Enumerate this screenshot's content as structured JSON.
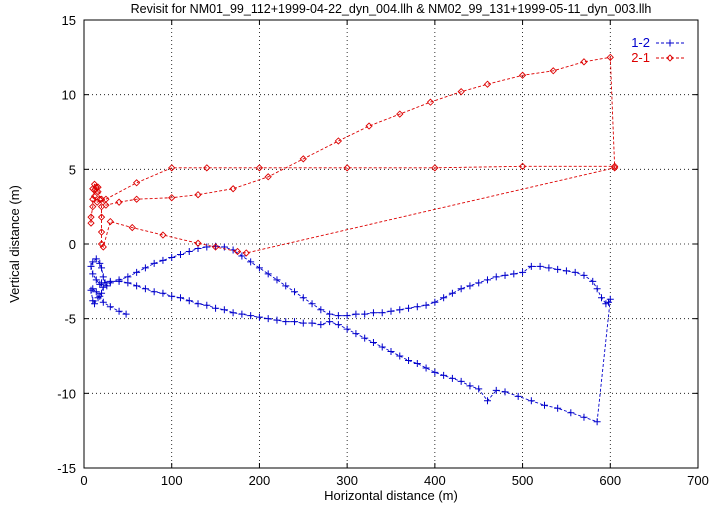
{
  "chart_data": {
    "type": "scatter",
    "title": "Revisit for NM01_99_112+1999-04-22_dyn_004.llh & NM02_99_131+1999-05-11_dyn_003.llh",
    "xlabel": "Horizontal distance (m)",
    "ylabel": "Vertical distance (m)",
    "xlim": [
      0,
      700
    ],
    "ylim": [
      -15,
      15
    ],
    "x_ticks": [
      0,
      100,
      200,
      300,
      400,
      500,
      600,
      700
    ],
    "y_ticks": [
      -15,
      -10,
      -5,
      0,
      5,
      10,
      15
    ],
    "x_tick_labels": [
      "0",
      "100",
      "200",
      "300",
      "400",
      "500",
      "600",
      "700"
    ],
    "y_tick_labels": [
      "-15",
      "-10",
      "-5",
      "0",
      "5",
      "10",
      "15"
    ],
    "grid": true,
    "legend_position": "top-right",
    "series": [
      {
        "name": "1-2",
        "color": "#0000cc",
        "marker": "plus",
        "points": [
          [
            48,
            -4.7
          ],
          [
            40,
            -4.5
          ],
          [
            30,
            -4.2
          ],
          [
            22,
            -3.9
          ],
          [
            18,
            -3.5
          ],
          [
            14,
            -3.2
          ],
          [
            10,
            -3.0
          ],
          [
            8,
            -3.1
          ],
          [
            10,
            -3.8
          ],
          [
            12,
            -4.0
          ],
          [
            16,
            -3.6
          ],
          [
            20,
            -3.3
          ],
          [
            22,
            -2.9
          ],
          [
            18,
            -2.7
          ],
          [
            14,
            -2.4
          ],
          [
            10,
            -2.0
          ],
          [
            8,
            -1.5
          ],
          [
            10,
            -1.2
          ],
          [
            14,
            -1.0
          ],
          [
            18,
            -1.3
          ],
          [
            20,
            -1.6
          ],
          [
            22,
            -2.2
          ],
          [
            24,
            -2.6
          ],
          [
            26,
            -2.8
          ],
          [
            30,
            -2.6
          ],
          [
            40,
            -2.4
          ],
          [
            50,
            -2.2
          ],
          [
            60,
            -1.9
          ],
          [
            70,
            -1.6
          ],
          [
            80,
            -1.3
          ],
          [
            90,
            -1.1
          ],
          [
            100,
            -0.9
          ],
          [
            110,
            -0.7
          ],
          [
            120,
            -0.5
          ],
          [
            130,
            -0.3
          ],
          [
            140,
            -0.2
          ],
          [
            150,
            -0.15
          ],
          [
            160,
            -0.2
          ],
          [
            170,
            -0.4
          ],
          [
            180,
            -0.8
          ],
          [
            190,
            -1.2
          ],
          [
            200,
            -1.6
          ],
          [
            210,
            -2.0
          ],
          [
            220,
            -2.4
          ],
          [
            230,
            -2.8
          ],
          [
            240,
            -3.2
          ],
          [
            250,
            -3.6
          ],
          [
            260,
            -4.0
          ],
          [
            270,
            -4.4
          ],
          [
            280,
            -4.7
          ],
          [
            290,
            -4.8
          ],
          [
            300,
            -4.8
          ],
          [
            310,
            -4.7
          ],
          [
            320,
            -4.7
          ],
          [
            330,
            -4.6
          ],
          [
            340,
            -4.6
          ],
          [
            350,
            -4.5
          ],
          [
            360,
            -4.4
          ],
          [
            370,
            -4.3
          ],
          [
            380,
            -4.2
          ],
          [
            390,
            -4.1
          ],
          [
            400,
            -3.9
          ],
          [
            410,
            -3.6
          ],
          [
            420,
            -3.3
          ],
          [
            430,
            -3.0
          ],
          [
            440,
            -2.8
          ],
          [
            450,
            -2.6
          ],
          [
            460,
            -2.4
          ],
          [
            470,
            -2.2
          ],
          [
            480,
            -2.1
          ],
          [
            490,
            -2.0
          ],
          [
            500,
            -1.9
          ],
          [
            510,
            -1.5
          ],
          [
            520,
            -1.5
          ],
          [
            530,
            -1.6
          ],
          [
            540,
            -1.7
          ],
          [
            550,
            -1.8
          ],
          [
            560,
            -1.9
          ],
          [
            570,
            -2.1
          ],
          [
            580,
            -2.5
          ],
          [
            585,
            -3.0
          ],
          [
            590,
            -3.6
          ],
          [
            595,
            -4.0
          ],
          [
            598,
            -3.9
          ],
          [
            600,
            -3.7
          ],
          [
            585,
            -11.9
          ],
          [
            570,
            -11.6
          ],
          [
            555,
            -11.3
          ],
          [
            540,
            -11.0
          ],
          [
            525,
            -10.8
          ],
          [
            510,
            -10.5
          ],
          [
            495,
            -10.2
          ],
          [
            480,
            -9.9
          ],
          [
            470,
            -9.8
          ],
          [
            460,
            -10.5
          ],
          [
            450,
            -9.7
          ],
          [
            440,
            -9.5
          ],
          [
            430,
            -9.2
          ],
          [
            420,
            -9.0
          ],
          [
            410,
            -8.8
          ],
          [
            400,
            -8.6
          ],
          [
            390,
            -8.3
          ],
          [
            380,
            -8.0
          ],
          [
            370,
            -7.8
          ],
          [
            360,
            -7.5
          ],
          [
            350,
            -7.2
          ],
          [
            340,
            -6.9
          ],
          [
            330,
            -6.6
          ],
          [
            320,
            -6.3
          ],
          [
            310,
            -6.0
          ],
          [
            300,
            -5.7
          ],
          [
            290,
            -5.4
          ],
          [
            280,
            -5.2
          ],
          [
            270,
            -5.4
          ],
          [
            260,
            -5.3
          ],
          [
            250,
            -5.3
          ],
          [
            240,
            -5.2
          ],
          [
            230,
            -5.2
          ],
          [
            220,
            -5.1
          ],
          [
            210,
            -5.0
          ],
          [
            200,
            -4.9
          ],
          [
            190,
            -4.8
          ],
          [
            180,
            -4.7
          ],
          [
            170,
            -4.6
          ],
          [
            160,
            -4.4
          ],
          [
            150,
            -4.3
          ],
          [
            140,
            -4.1
          ],
          [
            130,
            -4.0
          ],
          [
            120,
            -3.8
          ],
          [
            110,
            -3.6
          ],
          [
            100,
            -3.5
          ],
          [
            90,
            -3.3
          ],
          [
            80,
            -3.2
          ],
          [
            70,
            -3.0
          ],
          [
            60,
            -2.8
          ],
          [
            50,
            -2.6
          ],
          [
            40,
            -2.5
          ],
          [
            30,
            -2.5
          ],
          [
            20,
            -2.6
          ]
        ]
      },
      {
        "name": "2-1",
        "color": "#dd0000",
        "marker": "diamond",
        "points": [
          [
            8,
            1.4
          ],
          [
            8,
            1.8
          ],
          [
            10,
            2.5
          ],
          [
            10,
            3.0
          ],
          [
            12,
            3.6
          ],
          [
            14,
            3.8
          ],
          [
            16,
            3.5
          ],
          [
            18,
            3.0
          ],
          [
            20,
            2.5
          ],
          [
            20,
            1.8
          ],
          [
            20,
            0.8
          ],
          [
            20,
            0.0
          ],
          [
            22,
            -0.2
          ],
          [
            30,
            1.5
          ],
          [
            55,
            1.1
          ],
          [
            90,
            0.6
          ],
          [
            130,
            0.05
          ],
          [
            150,
            -0.2
          ],
          [
            175,
            -0.5
          ],
          [
            185,
            -0.6
          ],
          [
            605,
            5.1
          ],
          [
            600,
            12.5
          ],
          [
            570,
            12.2
          ],
          [
            535,
            11.6
          ],
          [
            500,
            11.3
          ],
          [
            460,
            10.7
          ],
          [
            430,
            10.2
          ],
          [
            395,
            9.5
          ],
          [
            360,
            8.7
          ],
          [
            325,
            7.9
          ],
          [
            290,
            6.9
          ],
          [
            250,
            5.7
          ],
          [
            210,
            4.5
          ],
          [
            170,
            3.7
          ],
          [
            130,
            3.3
          ],
          [
            100,
            3.1
          ],
          [
            60,
            3.0
          ],
          [
            40,
            2.8
          ],
          [
            25,
            2.6
          ],
          [
            20,
            3.0
          ],
          [
            16,
            3.8
          ],
          [
            12,
            4.0
          ],
          [
            10,
            3.7
          ],
          [
            12,
            3.2
          ],
          [
            15,
            2.8
          ],
          [
            25,
            3.0
          ],
          [
            60,
            4.1
          ],
          [
            100,
            5.1
          ],
          [
            140,
            5.1
          ],
          [
            200,
            5.1
          ],
          [
            300,
            5.1
          ],
          [
            400,
            5.1
          ],
          [
            500,
            5.2
          ],
          [
            605,
            5.2
          ]
        ]
      }
    ]
  }
}
